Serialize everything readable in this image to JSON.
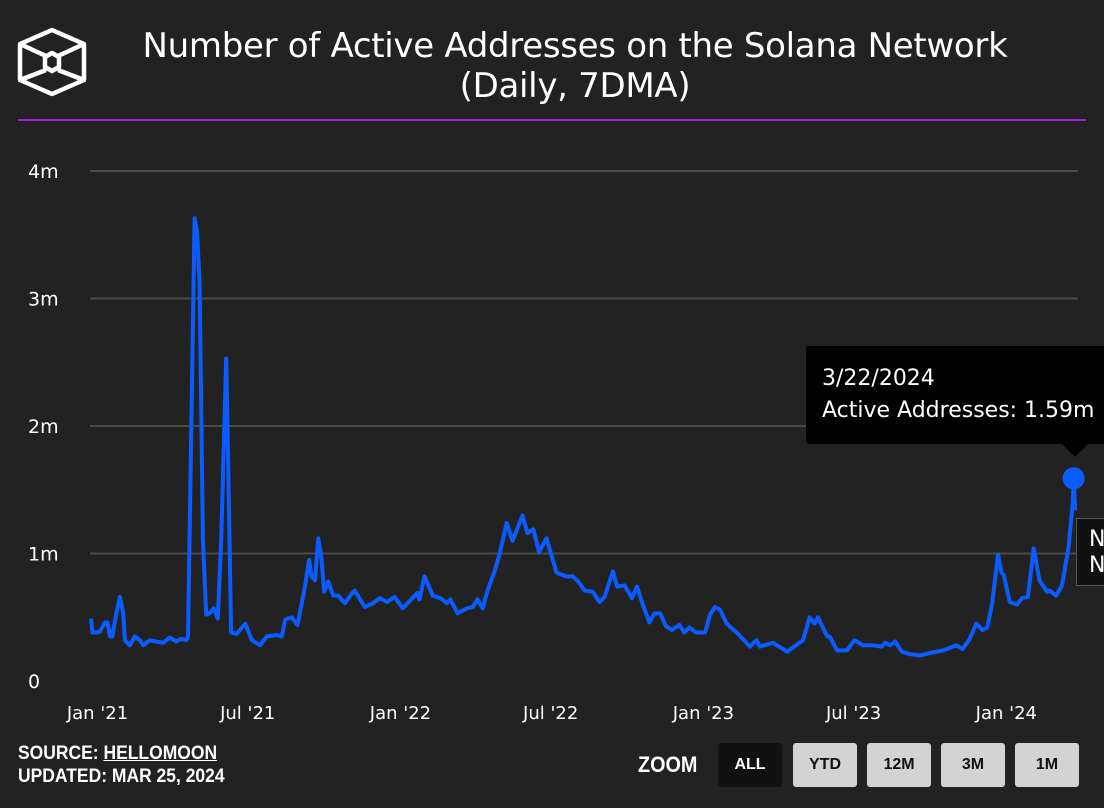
{
  "header": {
    "title_line1": "Number of Active Addresses on the Solana Network",
    "title_line2": "(Daily, 7DMA)",
    "logo": "cube-logo"
  },
  "colors": {
    "line": "#0a5cff",
    "background": "#222222",
    "rule": "#9d1ee8",
    "grid": "#4a4a4a"
  },
  "tooltip": {
    "date": "3/22/2024",
    "label": "Active Addresses: 1.59m"
  },
  "tooltip_partial": {
    "line1": "N",
    "line2": "N"
  },
  "footer": {
    "source_label": "SOURCE:",
    "source_name": "HELLOMOON",
    "updated_label": "UPDATED:",
    "updated_date": "MAR 25, 2024"
  },
  "zoom": {
    "label": "ZOOM",
    "buttons": [
      {
        "label": "ALL",
        "active": true
      },
      {
        "label": "YTD",
        "active": false
      },
      {
        "label": "12M",
        "active": false
      },
      {
        "label": "3M",
        "active": false
      },
      {
        "label": "1M",
        "active": false
      }
    ]
  },
  "chart_data": {
    "type": "line",
    "title": "Number of Active Addresses on the Solana Network (Daily, 7DMA)",
    "xlabel": "",
    "ylabel": "",
    "ylim": [
      0,
      4000000
    ],
    "xlim": [
      "2020-12-24",
      "2024-03-25"
    ],
    "yticks": [
      {
        "value": 0,
        "label": "0"
      },
      {
        "value": 1000000,
        "label": "1m"
      },
      {
        "value": 2000000,
        "label": "2m"
      },
      {
        "value": 3000000,
        "label": "3m"
      },
      {
        "value": 4000000,
        "label": "4m"
      }
    ],
    "xticks": [
      {
        "date": "2021-01-01",
        "label": "Jan '21"
      },
      {
        "date": "2021-07-01",
        "label": "Jul '21"
      },
      {
        "date": "2022-01-01",
        "label": "Jan '22"
      },
      {
        "date": "2022-07-01",
        "label": "Jul '22"
      },
      {
        "date": "2023-01-01",
        "label": "Jan '23"
      },
      {
        "date": "2023-07-01",
        "label": "Jul '23"
      },
      {
        "date": "2024-01-01",
        "label": "Jan '24"
      }
    ],
    "grid": true,
    "highlight": {
      "date": "2024-03-22",
      "value": 1590000
    },
    "series": [
      {
        "unit": "millions",
        "points": [
          [
            "2020-12-24",
            0.49
          ],
          [
            "2020-12-26",
            0.38
          ],
          [
            "2021-01-01",
            0.38
          ],
          [
            "2021-01-04",
            0.39
          ],
          [
            "2021-01-10",
            0.46
          ],
          [
            "2021-01-13",
            0.46
          ],
          [
            "2021-01-16",
            0.35
          ],
          [
            "2021-01-19",
            0.35
          ],
          [
            "2021-01-23",
            0.51
          ],
          [
            "2021-01-28",
            0.66
          ],
          [
            "2021-02-01",
            0.53
          ],
          [
            "2021-02-03",
            0.32
          ],
          [
            "2021-02-09",
            0.28
          ],
          [
            "2021-02-15",
            0.35
          ],
          [
            "2021-02-21",
            0.32
          ],
          [
            "2021-02-25",
            0.28
          ],
          [
            "2021-03-05",
            0.32
          ],
          [
            "2021-03-12",
            0.31
          ],
          [
            "2021-03-21",
            0.3
          ],
          [
            "2021-03-29",
            0.34
          ],
          [
            "2021-04-06",
            0.31
          ],
          [
            "2021-04-12",
            0.33
          ],
          [
            "2021-04-18",
            0.32
          ],
          [
            "2021-04-20",
            0.35
          ],
          [
            "2021-04-28",
            3.63
          ],
          [
            "2021-05-01",
            3.52
          ],
          [
            "2021-05-04",
            3.12
          ],
          [
            "2021-05-08",
            1.11
          ],
          [
            "2021-05-12",
            0.52
          ],
          [
            "2021-05-16",
            0.53
          ],
          [
            "2021-05-21",
            0.57
          ],
          [
            "2021-05-26",
            0.49
          ],
          [
            "2021-05-30",
            1.11
          ],
          [
            "2021-06-05",
            2.53
          ],
          [
            "2021-06-07",
            1.89
          ],
          [
            "2021-06-11",
            0.38
          ],
          [
            "2021-06-18",
            0.37
          ],
          [
            "2021-06-28",
            0.45
          ],
          [
            "2021-07-06",
            0.32
          ],
          [
            "2021-07-16",
            0.28
          ],
          [
            "2021-07-24",
            0.35
          ],
          [
            "2021-08-05",
            0.36
          ],
          [
            "2021-08-11",
            0.35
          ],
          [
            "2021-08-15",
            0.48
          ],
          [
            "2021-08-23",
            0.5
          ],
          [
            "2021-08-30",
            0.44
          ],
          [
            "2021-09-08",
            0.74
          ],
          [
            "2021-09-13",
            0.95
          ],
          [
            "2021-09-16",
            0.82
          ],
          [
            "2021-09-20",
            0.79
          ],
          [
            "2021-09-24",
            1.12
          ],
          [
            "2021-09-28",
            0.95
          ],
          [
            "2021-10-01",
            0.7
          ],
          [
            "2021-10-06",
            0.78
          ],
          [
            "2021-10-12",
            0.67
          ],
          [
            "2021-10-18",
            0.67
          ],
          [
            "2021-10-26",
            0.61
          ],
          [
            "2021-11-04",
            0.69
          ],
          [
            "2021-11-07",
            0.71
          ],
          [
            "2021-11-19",
            0.58
          ],
          [
            "2021-11-29",
            0.61
          ],
          [
            "2021-12-07",
            0.65
          ],
          [
            "2021-12-16",
            0.62
          ],
          [
            "2021-12-25",
            0.66
          ],
          [
            "2022-01-04",
            0.57
          ],
          [
            "2022-01-21",
            0.69
          ],
          [
            "2022-01-24",
            0.64
          ],
          [
            "2022-01-30",
            0.82
          ],
          [
            "2022-02-09",
            0.67
          ],
          [
            "2022-02-18",
            0.65
          ],
          [
            "2022-02-26",
            0.61
          ],
          [
            "2022-03-02",
            0.64
          ],
          [
            "2022-03-11",
            0.53
          ],
          [
            "2022-03-22",
            0.57
          ],
          [
            "2022-03-29",
            0.58
          ],
          [
            "2022-04-04",
            0.64
          ],
          [
            "2022-04-10",
            0.57
          ],
          [
            "2022-04-16",
            0.71
          ],
          [
            "2022-04-25",
            0.87
          ],
          [
            "2022-05-01",
            1.01
          ],
          [
            "2022-05-09",
            1.24
          ],
          [
            "2022-05-16",
            1.1
          ],
          [
            "2022-05-28",
            1.3
          ],
          [
            "2022-06-03",
            1.16
          ],
          [
            "2022-06-10",
            1.19
          ],
          [
            "2022-06-17",
            1.01
          ],
          [
            "2022-06-26",
            1.12
          ],
          [
            "2022-07-08",
            0.85
          ],
          [
            "2022-07-20",
            0.82
          ],
          [
            "2022-07-28",
            0.82
          ],
          [
            "2022-08-03",
            0.78
          ],
          [
            "2022-08-11",
            0.71
          ],
          [
            "2022-08-21",
            0.7
          ],
          [
            "2022-08-29",
            0.62
          ],
          [
            "2022-09-04",
            0.66
          ],
          [
            "2022-09-14",
            0.86
          ],
          [
            "2022-09-19",
            0.74
          ],
          [
            "2022-09-28",
            0.75
          ],
          [
            "2022-10-07",
            0.65
          ],
          [
            "2022-10-13",
            0.74
          ],
          [
            "2022-10-20",
            0.6
          ],
          [
            "2022-10-28",
            0.46
          ],
          [
            "2022-11-03",
            0.53
          ],
          [
            "2022-11-10",
            0.53
          ],
          [
            "2022-11-17",
            0.43
          ],
          [
            "2022-11-24",
            0.4
          ],
          [
            "2022-12-03",
            0.44
          ],
          [
            "2022-12-09",
            0.38
          ],
          [
            "2022-12-15",
            0.42
          ],
          [
            "2022-12-23",
            0.38
          ],
          [
            "2023-01-03",
            0.38
          ],
          [
            "2023-01-09",
            0.52
          ],
          [
            "2023-01-15",
            0.58
          ],
          [
            "2023-01-21",
            0.56
          ],
          [
            "2023-01-29",
            0.45
          ],
          [
            "2023-02-10",
            0.38
          ],
          [
            "2023-02-26",
            0.27
          ],
          [
            "2023-03-06",
            0.32
          ],
          [
            "2023-03-10",
            0.27
          ],
          [
            "2023-03-26",
            0.3
          ],
          [
            "2023-04-12",
            0.23
          ],
          [
            "2023-05-01",
            0.32
          ],
          [
            "2023-05-09",
            0.5
          ],
          [
            "2023-05-15",
            0.45
          ],
          [
            "2023-05-19",
            0.5
          ],
          [
            "2023-05-30",
            0.35
          ],
          [
            "2023-06-02",
            0.35
          ],
          [
            "2023-06-11",
            0.24
          ],
          [
            "2023-06-23",
            0.24
          ],
          [
            "2023-07-02",
            0.32
          ],
          [
            "2023-07-12",
            0.28
          ],
          [
            "2023-07-24",
            0.28
          ],
          [
            "2023-08-04",
            0.27
          ],
          [
            "2023-08-08",
            0.3
          ],
          [
            "2023-08-14",
            0.28
          ],
          [
            "2023-08-20",
            0.31
          ],
          [
            "2023-08-28",
            0.23
          ],
          [
            "2023-09-07",
            0.21
          ],
          [
            "2023-09-19",
            0.2
          ],
          [
            "2023-10-01",
            0.22
          ],
          [
            "2023-10-17",
            0.24
          ],
          [
            "2023-11-02",
            0.28
          ],
          [
            "2023-11-09",
            0.25
          ],
          [
            "2023-11-17",
            0.32
          ],
          [
            "2023-11-26",
            0.45
          ],
          [
            "2023-12-03",
            0.4
          ],
          [
            "2023-12-09",
            0.42
          ],
          [
            "2023-12-15",
            0.61
          ],
          [
            "2023-12-22",
            0.99
          ],
          [
            "2023-12-26",
            0.85
          ],
          [
            "2023-12-29",
            0.83
          ],
          [
            "2024-01-05",
            0.62
          ],
          [
            "2024-01-14",
            0.6
          ],
          [
            "2024-01-20",
            0.65
          ],
          [
            "2024-01-27",
            0.66
          ],
          [
            "2024-02-03",
            1.04
          ],
          [
            "2024-02-10",
            0.79
          ],
          [
            "2024-02-19",
            0.7
          ],
          [
            "2024-02-22",
            0.71
          ],
          [
            "2024-03-01",
            0.67
          ],
          [
            "2024-03-08",
            0.75
          ],
          [
            "2024-03-16",
            1.05
          ],
          [
            "2024-03-21",
            1.4
          ],
          [
            "2024-03-22",
            1.59
          ],
          [
            "2024-03-24",
            1.34
          ]
        ]
      }
    ]
  }
}
